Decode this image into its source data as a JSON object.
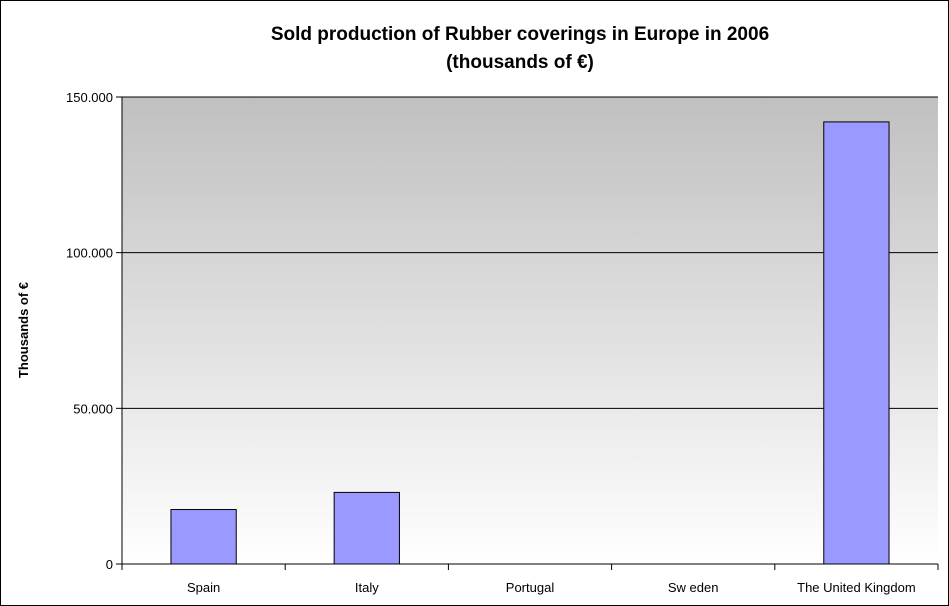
{
  "chart_data": {
    "type": "bar",
    "title_line1": "Sold production of Rubber coverings in Europe in 2006",
    "title_line2": "(thousands of €)",
    "ylabel": "Thousands of €",
    "xlabel": "",
    "categories": [
      "Spain",
      "Italy",
      "Portugal",
      "Sw eden",
      "The United Kingdom"
    ],
    "values": [
      17500,
      23000,
      0,
      0,
      142000
    ],
    "ylim": [
      0,
      150000
    ],
    "yticks": [
      0,
      50000,
      100000,
      150000
    ],
    "ytick_labels": [
      "0",
      "50.000",
      "100.000",
      "150.000"
    ],
    "grid": true,
    "legend": "none",
    "colors": {
      "bar_fill": "#9999ff",
      "bar_stroke": "#000000",
      "plot_bg_top": "#c0c0c0",
      "plot_bg_bottom": "#ffffff"
    }
  }
}
